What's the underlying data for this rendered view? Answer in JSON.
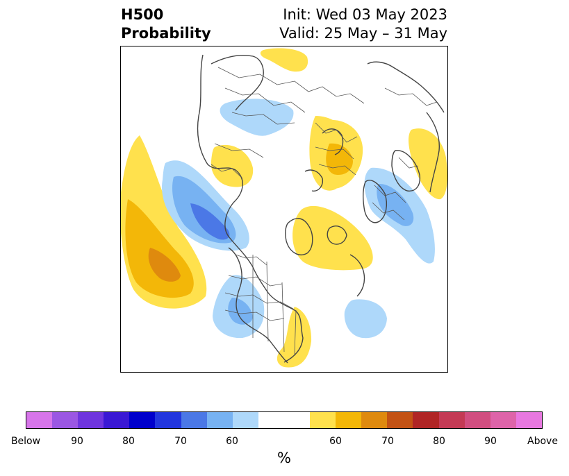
{
  "header": {
    "title_line1": "H500",
    "title_line2": "Probability",
    "init_text": "Init: Wed 03 May 2023",
    "valid_text": "Valid: 25 May – 31 May"
  },
  "map": {
    "projection": "polar-stereographic-north",
    "regions": [
      {
        "name": "north-pacific-above",
        "category": "above",
        "max_level": 75
      },
      {
        "name": "gulf-of-alaska-below",
        "category": "below",
        "max_level": 75
      },
      {
        "name": "western-us-below",
        "category": "below",
        "max_level": 65
      },
      {
        "name": "eastern-us-above",
        "category": "above",
        "max_level": 60
      },
      {
        "name": "greenland-above",
        "category": "above",
        "max_level": 60
      },
      {
        "name": "central-atlantic-below",
        "category": "below",
        "max_level": 60
      },
      {
        "name": "europe-below",
        "category": "below",
        "max_level": 65
      },
      {
        "name": "western-russia-above",
        "category": "above",
        "max_level": 65
      },
      {
        "name": "siberia-below",
        "category": "below",
        "max_level": 60
      },
      {
        "name": "east-asia-above",
        "category": "above",
        "max_level": 60
      },
      {
        "name": "middle-east-above",
        "category": "above",
        "max_level": 60
      },
      {
        "name": "kamchatka-above",
        "category": "above",
        "max_level": 60
      }
    ]
  },
  "colorbar": {
    "unit": "%",
    "colors": [
      "#d775ea",
      "#9b57e3",
      "#6f35de",
      "#3a18d4",
      "#0000cc",
      "#2236de",
      "#4b78e6",
      "#77b2f2",
      "#aed8fa",
      "#ffffff",
      "#ffe14d",
      "#f3b708",
      "#df8a0e",
      "#c35214",
      "#b02525",
      "#c43a55",
      "#d14e80",
      "#de64a9",
      "#e878e0"
    ],
    "tick_labels": [
      "Below",
      "90",
      "80",
      "70",
      "60",
      "60",
      "70",
      "80",
      "90",
      "Above"
    ]
  }
}
